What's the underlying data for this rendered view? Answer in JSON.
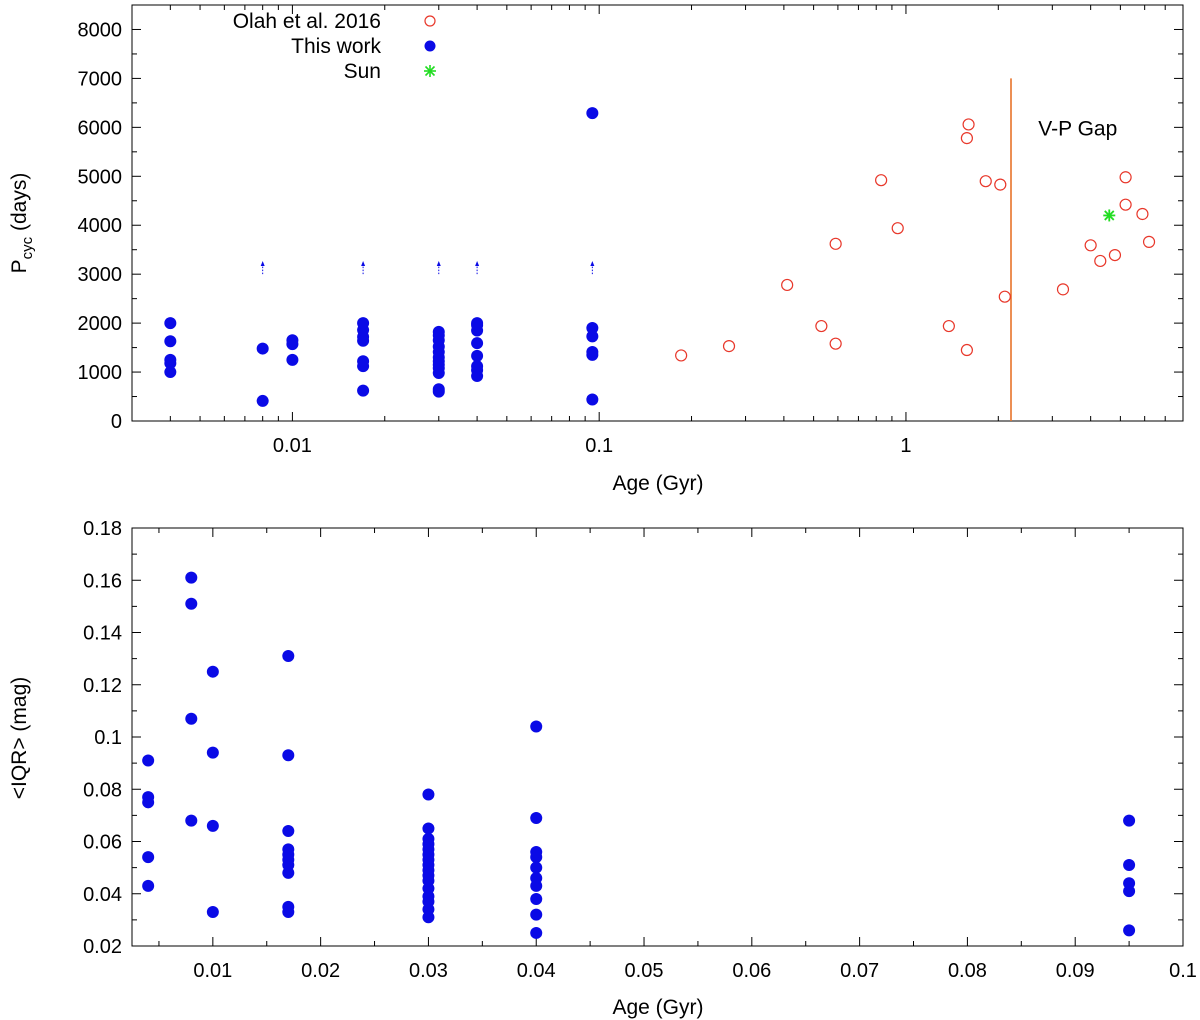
{
  "chart_data": [
    {
      "id": "top",
      "type": "scatter",
      "xscale": "log",
      "xlabel": "Age (Gyr)",
      "ylabel_main": "P",
      "ylabel_sub": "cyc",
      "ylabel_unit": " (days)",
      "xlim": [
        0.003,
        8.0
      ],
      "ylim": [
        0,
        8500
      ],
      "xticks": [
        {
          "value": 0.01,
          "label": "0.01"
        },
        {
          "value": 0.1,
          "label": "0.1"
        },
        {
          "value": 1,
          "label": "1"
        }
      ],
      "yticks": [
        {
          "value": 0,
          "label": "0"
        },
        {
          "value": 1000,
          "label": "1000"
        },
        {
          "value": 2000,
          "label": "2000"
        },
        {
          "value": 3000,
          "label": "3000"
        },
        {
          "value": 4000,
          "label": "4000"
        },
        {
          "value": 5000,
          "label": "5000"
        },
        {
          "value": 6000,
          "label": "6000"
        },
        {
          "value": 7000,
          "label": "7000"
        },
        {
          "value": 8000,
          "label": "8000"
        }
      ],
      "legend_position": "top-left",
      "series": [
        {
          "name": "Olah et al. 2016",
          "marker": "open-circle",
          "color": "#e8372a",
          "points": [
            [
              0.185,
              1340
            ],
            [
              0.265,
              1530
            ],
            [
              0.41,
              2780
            ],
            [
              0.53,
              1940
            ],
            [
              0.59,
              1580
            ],
            [
              0.59,
              3620
            ],
            [
              0.83,
              4920
            ],
            [
              0.94,
              3940
            ],
            [
              1.38,
              1940
            ],
            [
              1.58,
              1450
            ],
            [
              1.58,
              5780
            ],
            [
              1.6,
              6060
            ],
            [
              1.82,
              4900
            ],
            [
              2.03,
              4830
            ],
            [
              2.1,
              2540
            ],
            [
              3.25,
              2690
            ],
            [
              4.0,
              3590
            ],
            [
              4.3,
              3270
            ],
            [
              4.8,
              3390
            ],
            [
              5.2,
              4980
            ],
            [
              5.2,
              4420
            ],
            [
              5.9,
              4230
            ],
            [
              6.2,
              3660
            ]
          ]
        },
        {
          "name": "This work",
          "marker": "filled-circle",
          "color": "#0a0ae6",
          "points": [
            [
              0.004,
              1000
            ],
            [
              0.004,
              1180
            ],
            [
              0.004,
              1250
            ],
            [
              0.004,
              1630
            ],
            [
              0.004,
              2000
            ],
            [
              0.008,
              410
            ],
            [
              0.008,
              1480
            ],
            [
              0.01,
              1250
            ],
            [
              0.01,
              1570
            ],
            [
              0.01,
              1650
            ],
            [
              0.017,
              620
            ],
            [
              0.017,
              1120
            ],
            [
              0.017,
              1220
            ],
            [
              0.017,
              1640
            ],
            [
              0.017,
              1720
            ],
            [
              0.017,
              1860
            ],
            [
              0.017,
              2000
            ],
            [
              0.03,
              600
            ],
            [
              0.03,
              650
            ],
            [
              0.03,
              980
            ],
            [
              0.03,
              1080
            ],
            [
              0.03,
              1150
            ],
            [
              0.03,
              1220
            ],
            [
              0.03,
              1300
            ],
            [
              0.03,
              1410
            ],
            [
              0.03,
              1520
            ],
            [
              0.03,
              1650
            ],
            [
              0.03,
              1750
            ],
            [
              0.03,
              1820
            ],
            [
              0.04,
              920
            ],
            [
              0.04,
              1040
            ],
            [
              0.04,
              1120
            ],
            [
              0.04,
              1330
            ],
            [
              0.04,
              1590
            ],
            [
              0.04,
              1850
            ],
            [
              0.04,
              1960
            ],
            [
              0.04,
              2000
            ],
            [
              0.095,
              440
            ],
            [
              0.095,
              1350
            ],
            [
              0.095,
              1410
            ],
            [
              0.095,
              1730
            ],
            [
              0.095,
              1900
            ],
            [
              0.095,
              6290
            ]
          ]
        },
        {
          "name": "Sun",
          "marker": "asterisk",
          "color": "#22dd22",
          "points": [
            [
              4.6,
              4200
            ]
          ]
        }
      ],
      "lower_limit_arrows": {
        "color": "#0a0ae6",
        "x": [
          0.008,
          0.017,
          0.03,
          0.04,
          0.095
        ],
        "y_from": 3000,
        "y_to": 3250
      },
      "vline": {
        "x": 2.2,
        "y_from": 0,
        "y_to": 7000,
        "color": "#e8732a"
      },
      "annotation": {
        "text": "V-P Gap",
        "x": 2.7,
        "y": 6000
      }
    },
    {
      "id": "bottom",
      "type": "scatter",
      "xscale": "linear",
      "xlabel": "Age (Gyr)",
      "ylabel": "<IQR> (mag)",
      "xlim": [
        0.0025,
        0.1
      ],
      "ylim": [
        0.02,
        0.18
      ],
      "xticks": [
        {
          "value": 0.01,
          "label": "0.01"
        },
        {
          "value": 0.02,
          "label": "0.02"
        },
        {
          "value": 0.03,
          "label": "0.03"
        },
        {
          "value": 0.04,
          "label": "0.04"
        },
        {
          "value": 0.05,
          "label": "0.05"
        },
        {
          "value": 0.06,
          "label": "0.06"
        },
        {
          "value": 0.07,
          "label": "0.07"
        },
        {
          "value": 0.08,
          "label": "0.08"
        },
        {
          "value": 0.09,
          "label": "0.09"
        },
        {
          "value": 0.1,
          "label": "0.1"
        }
      ],
      "yticks": [
        {
          "value": 0.02,
          "label": "0.02"
        },
        {
          "value": 0.04,
          "label": "0.04"
        },
        {
          "value": 0.06,
          "label": "0.06"
        },
        {
          "value": 0.08,
          "label": "0.08"
        },
        {
          "value": 0.1,
          "label": "0.1"
        },
        {
          "value": 0.12,
          "label": "0.12"
        },
        {
          "value": 0.14,
          "label": "0.14"
        },
        {
          "value": 0.16,
          "label": "0.16"
        },
        {
          "value": 0.18,
          "label": "0.18"
        }
      ],
      "series": [
        {
          "name": "This work",
          "marker": "filled-circle",
          "color": "#0a0ae6",
          "points": [
            [
              0.004,
              0.043
            ],
            [
              0.004,
              0.054
            ],
            [
              0.004,
              0.075
            ],
            [
              0.004,
              0.077
            ],
            [
              0.004,
              0.091
            ],
            [
              0.008,
              0.068
            ],
            [
              0.008,
              0.107
            ],
            [
              0.008,
              0.151
            ],
            [
              0.008,
              0.161
            ],
            [
              0.01,
              0.033
            ],
            [
              0.01,
              0.066
            ],
            [
              0.01,
              0.094
            ],
            [
              0.01,
              0.125
            ],
            [
              0.017,
              0.033
            ],
            [
              0.017,
              0.035
            ],
            [
              0.017,
              0.048
            ],
            [
              0.017,
              0.051
            ],
            [
              0.017,
              0.053
            ],
            [
              0.017,
              0.055
            ],
            [
              0.017,
              0.057
            ],
            [
              0.017,
              0.064
            ],
            [
              0.017,
              0.093
            ],
            [
              0.017,
              0.131
            ],
            [
              0.03,
              0.031
            ],
            [
              0.03,
              0.034
            ],
            [
              0.03,
              0.037
            ],
            [
              0.03,
              0.039
            ],
            [
              0.03,
              0.042
            ],
            [
              0.03,
              0.045
            ],
            [
              0.03,
              0.047
            ],
            [
              0.03,
              0.049
            ],
            [
              0.03,
              0.051
            ],
            [
              0.03,
              0.053
            ],
            [
              0.03,
              0.055
            ],
            [
              0.03,
              0.057
            ],
            [
              0.03,
              0.059
            ],
            [
              0.03,
              0.061
            ],
            [
              0.03,
              0.065
            ],
            [
              0.03,
              0.078
            ],
            [
              0.04,
              0.025
            ],
            [
              0.04,
              0.032
            ],
            [
              0.04,
              0.038
            ],
            [
              0.04,
              0.043
            ],
            [
              0.04,
              0.046
            ],
            [
              0.04,
              0.05
            ],
            [
              0.04,
              0.054
            ],
            [
              0.04,
              0.056
            ],
            [
              0.04,
              0.069
            ],
            [
              0.04,
              0.104
            ],
            [
              0.095,
              0.026
            ],
            [
              0.095,
              0.041
            ],
            [
              0.095,
              0.044
            ],
            [
              0.095,
              0.051
            ],
            [
              0.095,
              0.068
            ]
          ]
        }
      ]
    }
  ]
}
